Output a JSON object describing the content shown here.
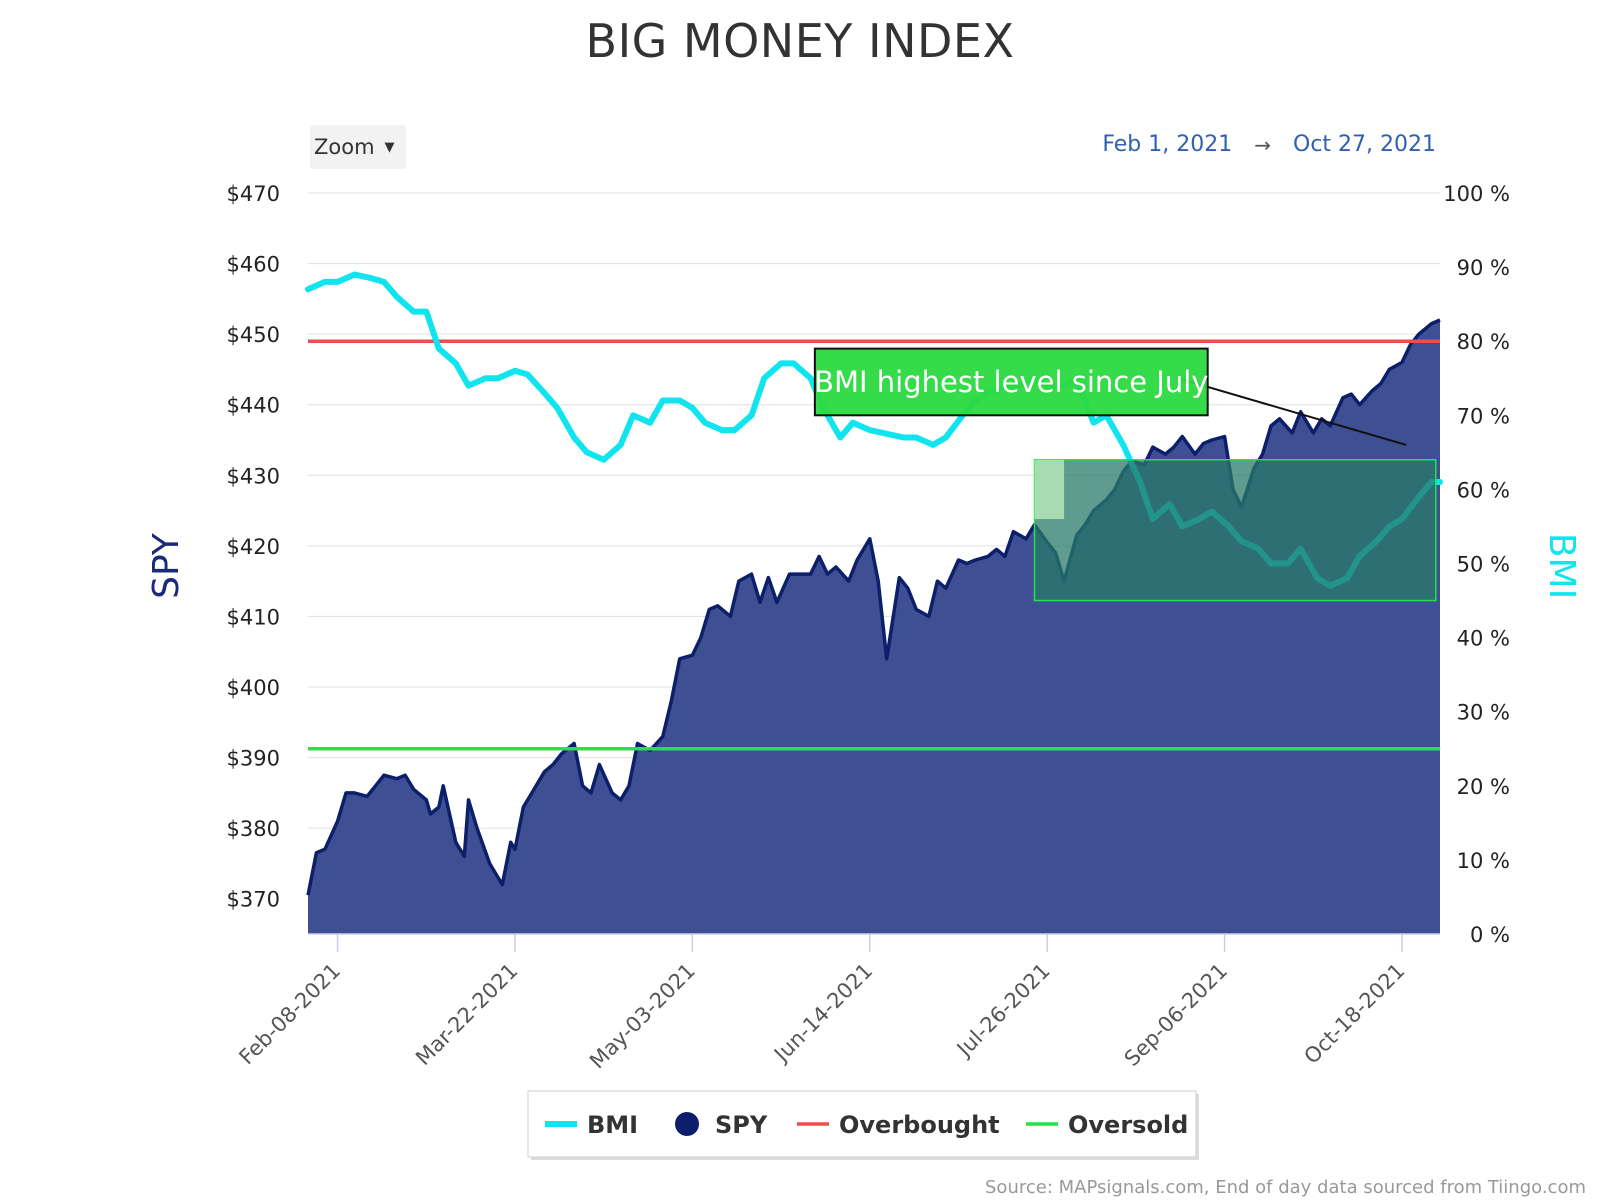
{
  "title": "BIG MONEY INDEX",
  "zoom_label": "Zoom",
  "range": {
    "from": "Feb 1, 2021",
    "arrow": "→",
    "to": "Oct 27, 2021"
  },
  "source": "Source: MAPsignals.com, End of day data sourced from Tiingo.com",
  "colors": {
    "spy_fill": "#3f4f93",
    "spy_line": "#0c1f6a",
    "bmi": "#10e4ee",
    "overbought": "#f04c4c",
    "oversold": "#22e34a",
    "annotation_fill": "#2bd940",
    "shade_fill": "#2a7a6a"
  },
  "chart_data": {
    "type": "line",
    "title": "BIG MONEY INDEX",
    "x_start": "2021-02-01",
    "x_end": "2021-10-27",
    "x_ticks": [
      "Feb-08-2021",
      "Mar-22-2021",
      "May-03-2021",
      "Jun-14-2021",
      "Jul-26-2021",
      "Sep-06-2021",
      "Oct-18-2021"
    ],
    "y_left": {
      "label": "SPY",
      "ticks": [
        "$470",
        "$460",
        "$450",
        "$440",
        "$430",
        "$420",
        "$410",
        "$400",
        "$390",
        "$380",
        "$370"
      ],
      "range": [
        365,
        470
      ]
    },
    "y_right": {
      "label": "BMI",
      "ticks": [
        "100 %",
        "90 %",
        "80 %",
        "70 %",
        "60 %",
        "50 %",
        "40 %",
        "30 %",
        "20 %",
        "10 %",
        "0 %"
      ],
      "range": [
        0,
        100
      ]
    },
    "overbought": 80,
    "oversold": 25,
    "annotation": "BMI highest level since July",
    "series": [
      {
        "name": "SPY",
        "points": [
          [
            "2021-02-01",
            370.5
          ],
          [
            "2021-02-03",
            376.5
          ],
          [
            "2021-02-05",
            377
          ],
          [
            "2021-02-08",
            381
          ],
          [
            "2021-02-10",
            385
          ],
          [
            "2021-02-12",
            385
          ],
          [
            "2021-02-15",
            384.5
          ],
          [
            "2021-02-17",
            386
          ],
          [
            "2021-02-19",
            387.5
          ],
          [
            "2021-02-22",
            387
          ],
          [
            "2021-02-24",
            387.5
          ],
          [
            "2021-02-26",
            385.5
          ],
          [
            "2021-03-01",
            384
          ],
          [
            "2021-03-02",
            382
          ],
          [
            "2021-03-04",
            383
          ],
          [
            "2021-03-05",
            386
          ],
          [
            "2021-03-08",
            378
          ],
          [
            "2021-03-10",
            376
          ],
          [
            "2021-03-11",
            384
          ],
          [
            "2021-03-13",
            380
          ],
          [
            "2021-03-16",
            375
          ],
          [
            "2021-03-19",
            372
          ],
          [
            "2021-03-21",
            378
          ],
          [
            "2021-03-22",
            377
          ],
          [
            "2021-03-24",
            383
          ],
          [
            "2021-03-26",
            385
          ],
          [
            "2021-03-29",
            388
          ],
          [
            "2021-03-31",
            389
          ],
          [
            "2021-04-02",
            390.5
          ],
          [
            "2021-04-05",
            392
          ],
          [
            "2021-04-07",
            386
          ],
          [
            "2021-04-09",
            385
          ],
          [
            "2021-04-11",
            389
          ],
          [
            "2021-04-14",
            385
          ],
          [
            "2021-04-16",
            384
          ],
          [
            "2021-04-18",
            386
          ],
          [
            "2021-04-20",
            392
          ],
          [
            "2021-04-23",
            391
          ],
          [
            "2021-04-26",
            393
          ],
          [
            "2021-04-28",
            398
          ],
          [
            "2021-04-30",
            404
          ],
          [
            "2021-05-03",
            404.5
          ],
          [
            "2021-05-05",
            407
          ],
          [
            "2021-05-07",
            411
          ],
          [
            "2021-05-09",
            411.5
          ],
          [
            "2021-05-12",
            410
          ],
          [
            "2021-05-14",
            415
          ],
          [
            "2021-05-17",
            416
          ],
          [
            "2021-05-19",
            412
          ],
          [
            "2021-05-21",
            415.5
          ],
          [
            "2021-05-23",
            412
          ],
          [
            "2021-05-26",
            416
          ],
          [
            "2021-05-28",
            416
          ],
          [
            "2021-05-31",
            416
          ],
          [
            "2021-06-02",
            418.5
          ],
          [
            "2021-06-04",
            416
          ],
          [
            "2021-06-06",
            417
          ],
          [
            "2021-06-09",
            415
          ],
          [
            "2021-06-11",
            418
          ],
          [
            "2021-06-14",
            421
          ],
          [
            "2021-06-16",
            415
          ],
          [
            "2021-06-18",
            404
          ],
          [
            "2021-06-21",
            415.5
          ],
          [
            "2021-06-23",
            414
          ],
          [
            "2021-06-25",
            411
          ],
          [
            "2021-06-28",
            410
          ],
          [
            "2021-06-30",
            415
          ],
          [
            "2021-07-02",
            414
          ],
          [
            "2021-07-05",
            418
          ],
          [
            "2021-07-07",
            417.5
          ],
          [
            "2021-07-09",
            418
          ],
          [
            "2021-07-12",
            418.5
          ],
          [
            "2021-07-14",
            419.5
          ],
          [
            "2021-07-16",
            418.5
          ],
          [
            "2021-07-18",
            422
          ],
          [
            "2021-07-21",
            421
          ],
          [
            "2021-07-23",
            423
          ],
          [
            "2021-07-26",
            420.5
          ],
          [
            "2021-07-28",
            419
          ],
          [
            "2021-07-30",
            415
          ],
          [
            "2021-08-02",
            421.5
          ],
          [
            "2021-08-04",
            423
          ],
          [
            "2021-08-06",
            425
          ],
          [
            "2021-08-09",
            426.5
          ],
          [
            "2021-08-11",
            428
          ],
          [
            "2021-08-13",
            430.5
          ],
          [
            "2021-08-15",
            432
          ],
          [
            "2021-08-18",
            431.5
          ],
          [
            "2021-08-20",
            434
          ],
          [
            "2021-08-23",
            433
          ],
          [
            "2021-08-25",
            434
          ],
          [
            "2021-08-27",
            435.5
          ],
          [
            "2021-08-30",
            433
          ],
          [
            "2021-09-01",
            434.5
          ],
          [
            "2021-09-03",
            435
          ],
          [
            "2021-09-06",
            435.5
          ],
          [
            "2021-09-08",
            428
          ],
          [
            "2021-09-10",
            425.5
          ],
          [
            "2021-09-13",
            431
          ],
          [
            "2021-09-15",
            433
          ],
          [
            "2021-09-17",
            437
          ],
          [
            "2021-09-19",
            438
          ],
          [
            "2021-09-22",
            436
          ],
          [
            "2021-09-24",
            439
          ],
          [
            "2021-09-27",
            436
          ],
          [
            "2021-09-29",
            438
          ],
          [
            "2021-10-01",
            437
          ],
          [
            "2021-10-04",
            441
          ],
          [
            "2021-10-06",
            441.5
          ],
          [
            "2021-10-08",
            440
          ],
          [
            "2021-10-11",
            442
          ],
          [
            "2021-10-13",
            443
          ],
          [
            "2021-10-15",
            445
          ],
          [
            "2021-10-18",
            446
          ],
          [
            "2021-10-20",
            448.5
          ],
          [
            "2021-10-22",
            450
          ],
          [
            "2021-10-25",
            451.5
          ],
          [
            "2021-10-27",
            452
          ]
        ]
      },
      {
        "name": "BMI",
        "points": [
          [
            "2021-02-01",
            87
          ],
          [
            "2021-02-05",
            88
          ],
          [
            "2021-02-08",
            88
          ],
          [
            "2021-02-12",
            89
          ],
          [
            "2021-02-16",
            88.5
          ],
          [
            "2021-02-19",
            88
          ],
          [
            "2021-02-22",
            86
          ],
          [
            "2021-02-26",
            84
          ],
          [
            "2021-03-01",
            84
          ],
          [
            "2021-03-04",
            79
          ],
          [
            "2021-03-08",
            77
          ],
          [
            "2021-03-11",
            74
          ],
          [
            "2021-03-15",
            75
          ],
          [
            "2021-03-18",
            75
          ],
          [
            "2021-03-22",
            76
          ],
          [
            "2021-03-25",
            75.5
          ],
          [
            "2021-03-29",
            73
          ],
          [
            "2021-04-01",
            71
          ],
          [
            "2021-04-05",
            67
          ],
          [
            "2021-04-08",
            65
          ],
          [
            "2021-04-12",
            64
          ],
          [
            "2021-04-16",
            66
          ],
          [
            "2021-04-19",
            70
          ],
          [
            "2021-04-23",
            69
          ],
          [
            "2021-04-26",
            72
          ],
          [
            "2021-04-30",
            72
          ],
          [
            "2021-05-03",
            71
          ],
          [
            "2021-05-06",
            69
          ],
          [
            "2021-05-10",
            68
          ],
          [
            "2021-05-13",
            68
          ],
          [
            "2021-05-17",
            70
          ],
          [
            "2021-05-20",
            75
          ],
          [
            "2021-05-24",
            77
          ],
          [
            "2021-05-27",
            77
          ],
          [
            "2021-05-31",
            75
          ],
          [
            "2021-06-03",
            71
          ],
          [
            "2021-06-07",
            67
          ],
          [
            "2021-06-10",
            69
          ],
          [
            "2021-06-14",
            68
          ],
          [
            "2021-06-18",
            67.5
          ],
          [
            "2021-06-22",
            67
          ],
          [
            "2021-06-25",
            67
          ],
          [
            "2021-06-29",
            66
          ],
          [
            "2021-07-02",
            67
          ],
          [
            "2021-07-06",
            70
          ],
          [
            "2021-07-09",
            72
          ],
          [
            "2021-07-12",
            73
          ],
          [
            "2021-07-16",
            74
          ],
          [
            "2021-07-19",
            74
          ],
          [
            "2021-07-23",
            75
          ],
          [
            "2021-07-26",
            74
          ],
          [
            "2021-07-30",
            74
          ],
          [
            "2021-08-02",
            75
          ],
          [
            "2021-08-06",
            69
          ],
          [
            "2021-08-09",
            70
          ],
          [
            "2021-08-13",
            66
          ],
          [
            "2021-08-17",
            61
          ],
          [
            "2021-08-20",
            56
          ],
          [
            "2021-08-24",
            58
          ],
          [
            "2021-08-27",
            55
          ],
          [
            "2021-08-31",
            56
          ],
          [
            "2021-09-03",
            57
          ],
          [
            "2021-09-07",
            55
          ],
          [
            "2021-09-10",
            53
          ],
          [
            "2021-09-14",
            52
          ],
          [
            "2021-09-17",
            50
          ],
          [
            "2021-09-21",
            50
          ],
          [
            "2021-09-24",
            52
          ],
          [
            "2021-09-28",
            48
          ],
          [
            "2021-10-01",
            47
          ],
          [
            "2021-10-05",
            48
          ],
          [
            "2021-10-08",
            51
          ],
          [
            "2021-10-12",
            53
          ],
          [
            "2021-10-15",
            55
          ],
          [
            "2021-10-18",
            56
          ],
          [
            "2021-10-22",
            59
          ],
          [
            "2021-10-25",
            61
          ],
          [
            "2021-10-27",
            61
          ]
        ]
      }
    ]
  },
  "axis_titles": {
    "left": "SPY",
    "right": "BMI"
  },
  "legend": [
    {
      "label": "BMI",
      "symbol": "line",
      "color": "#10e4ee"
    },
    {
      "label": "SPY",
      "symbol": "circle",
      "color": "#0c1f6a"
    },
    {
      "label": "Overbought",
      "symbol": "line",
      "color": "#f04c4c"
    },
    {
      "label": "Oversold",
      "symbol": "line",
      "color": "#22e34a"
    }
  ]
}
